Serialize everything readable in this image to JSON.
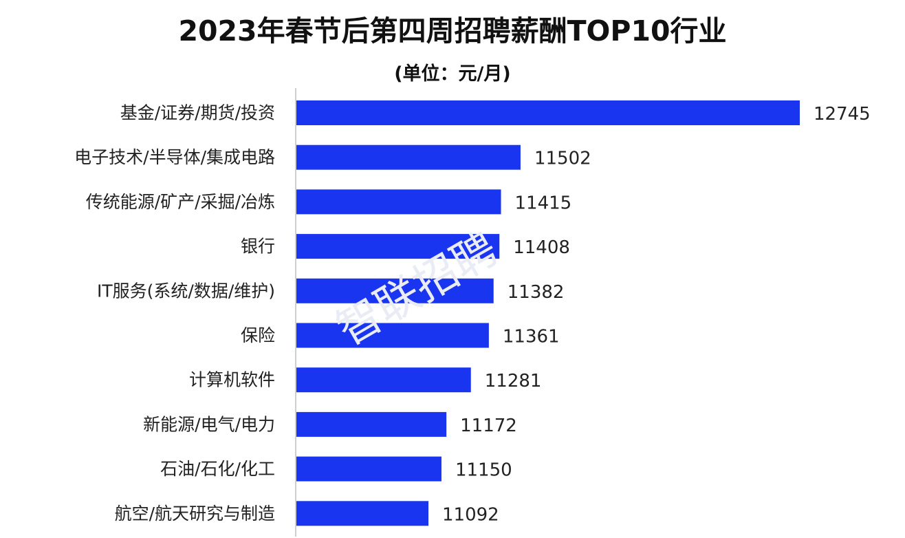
{
  "chart_data": {
    "type": "bar",
    "orientation": "horizontal",
    "title": "2023年春节后第四周招聘薪酬TOP10行业",
    "subtitle": "(单位：元/月)",
    "categories": [
      "基金/证券/期货/投资",
      "电子技术/半导体/集成电路",
      "传统能源/矿产/采掘/冶炼",
      "银行",
      "IT服务(系统/数据/维护)",
      "保险",
      "计算机软件",
      "新能源/电气/电力",
      "石油/石化/化工",
      "航空/航天研究与制造"
    ],
    "values": [
      12745,
      11502,
      11415,
      11408,
      11382,
      11361,
      11281,
      11172,
      11150,
      11092
    ],
    "value_labels": [
      "12745",
      "11502",
      "11415",
      "11408",
      "11382",
      "11361",
      "11281",
      "11172",
      "11150",
      "11092"
    ],
    "bar_color": "#1a35f0",
    "grid": false,
    "legend": "none"
  },
  "watermark": "智联招聘"
}
